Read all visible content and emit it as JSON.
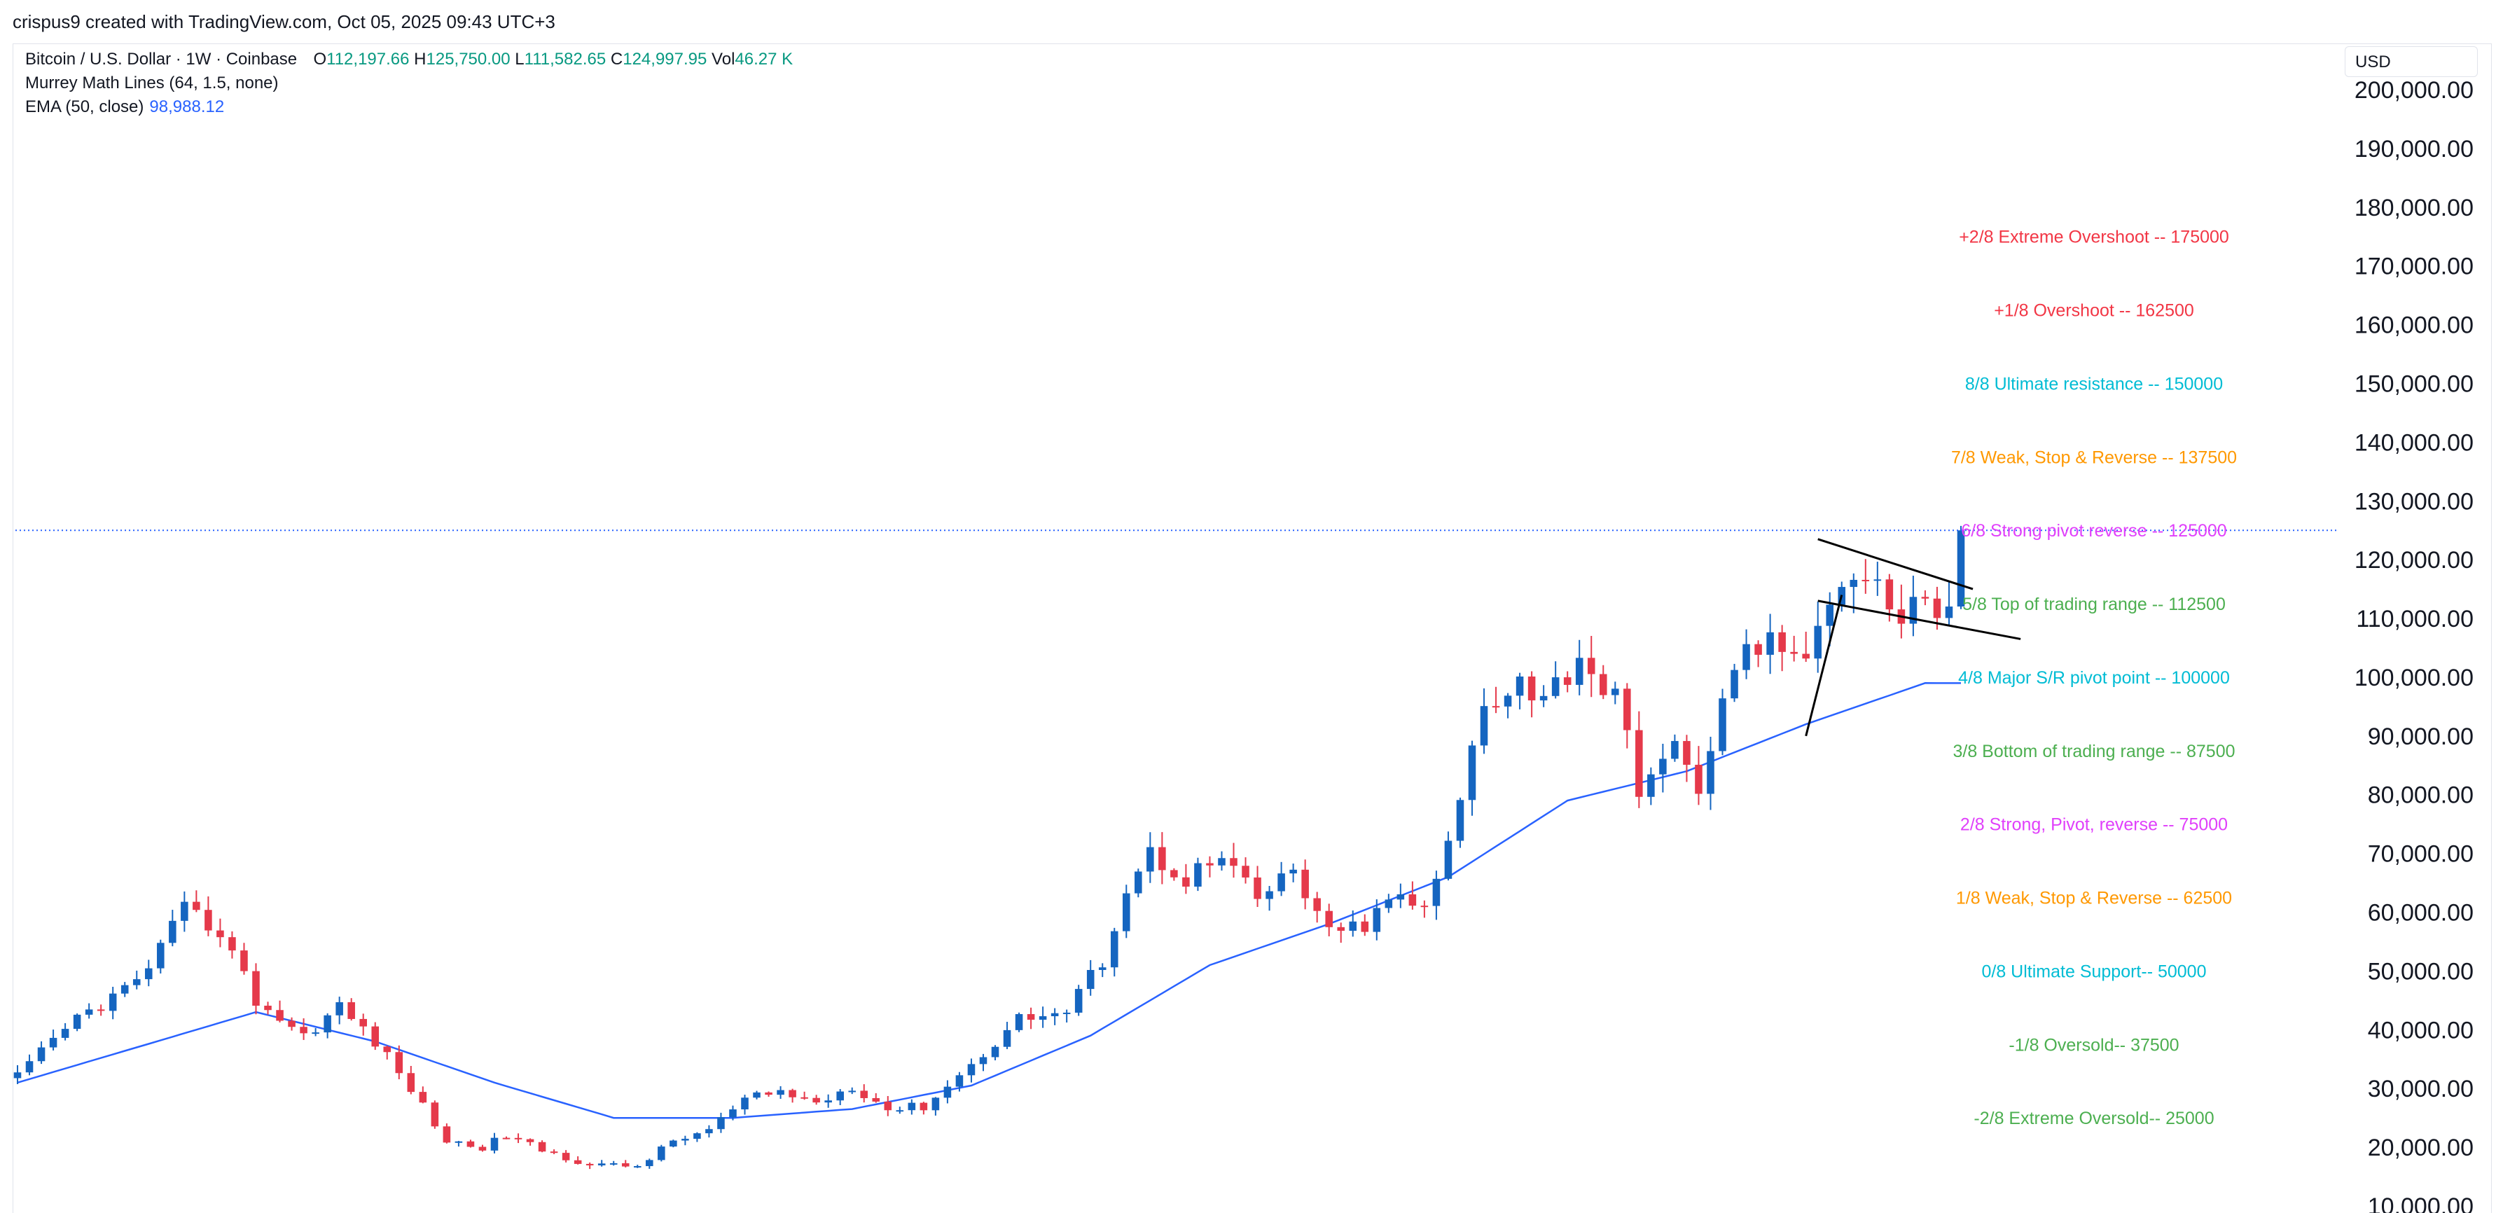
{
  "header": {
    "attribution": "crispus9 created with TradingView.com, Oct 05, 2025 09:43 UTC+3"
  },
  "legend": {
    "symbol": "Bitcoin / U.S. Dollar · 1W · Coinbase",
    "open_label": "O",
    "open": "112,197.66",
    "high_label": "H",
    "high": "125,750.00",
    "low_label": "L",
    "low": "111,582.65",
    "close_label": "C",
    "close": "124,997.95",
    "vol_label": "Vol",
    "vol": "46.27 K",
    "mml": "Murrey Math Lines (64, 1.5, none)",
    "ema_label": "EMA (50, close)",
    "ema_value": "98,988.12"
  },
  "currency": "USD",
  "colors": {
    "up": "#1565c0",
    "down": "#e5394a",
    "ema": "#2962ff",
    "last_price_line": "#2962ff",
    "pattern_lines": "#000000"
  },
  "chart_data": {
    "type": "candlestick",
    "title": "Bitcoin / U.S. Dollar · 1W · Coinbase",
    "interval": "1W",
    "ylim": [
      10000,
      200000
    ],
    "y_ticks": [
      {
        "value": 200000,
        "label": "200,000.00"
      },
      {
        "value": 190000,
        "label": "190,000.00"
      },
      {
        "value": 180000,
        "label": "180,000.00"
      },
      {
        "value": 170000,
        "label": "170,000.00"
      },
      {
        "value": 160000,
        "label": "160,000.00"
      },
      {
        "value": 150000,
        "label": "150,000.00"
      },
      {
        "value": 140000,
        "label": "140,000.00"
      },
      {
        "value": 130000,
        "label": "130,000.00"
      },
      {
        "value": 120000,
        "label": "120,000.00"
      },
      {
        "value": 110000,
        "label": "110,000.00"
      },
      {
        "value": 100000,
        "label": "100,000.00"
      },
      {
        "value": 90000,
        "label": "90,000.00"
      },
      {
        "value": 80000,
        "label": "80,000.00"
      },
      {
        "value": 70000,
        "label": "70,000.00"
      },
      {
        "value": 60000,
        "label": "60,000.00"
      },
      {
        "value": 50000,
        "label": "50,000.00"
      },
      {
        "value": 40000,
        "label": "40,000.00"
      },
      {
        "value": 30000,
        "label": "30,000.00"
      },
      {
        "value": 20000,
        "label": "20,000.00"
      },
      {
        "value": 10000,
        "label": "10,000.00"
      }
    ],
    "last_price": 124997.95,
    "ema_period": 50,
    "ema_latest": 98988.12,
    "mml_levels": [
      {
        "text": "+2/8 Extreme Overshoot --  175000",
        "value": 175000,
        "color": "#f23645"
      },
      {
        "text": "+1/8 Overshoot --  162500",
        "value": 162500,
        "color": "#f23645"
      },
      {
        "text": "8/8 Ultimate resistance --  150000",
        "value": 150000,
        "color": "#00bcd4"
      },
      {
        "text": "7/8 Weak, Stop & Reverse --  137500",
        "value": 137500,
        "color": "#ff9800"
      },
      {
        "text": "6/8 Strong pivot reverse --  125000",
        "value": 125000,
        "color": "#e040fb"
      },
      {
        "text": "5/8 Top of trading range --  112500",
        "value": 112500,
        "color": "#4caf50"
      },
      {
        "text": "4/8 Major S/R pivot point --  100000",
        "value": 100000,
        "color": "#00bcd4"
      },
      {
        "text": "3/8 Bottom of trading range --  87500",
        "value": 87500,
        "color": "#4caf50"
      },
      {
        "text": "2/8 Strong, Pivot, reverse --  75000",
        "value": 75000,
        "color": "#e040fb"
      },
      {
        "text": "1/8 Weak, Stop & Reverse --  62500",
        "value": 62500,
        "color": "#ff9800"
      },
      {
        "text": "0/8 Ultimate Support--  50000",
        "value": 50000,
        "color": "#00bcd4"
      },
      {
        "text": "-1/8 Oversold--  37500",
        "value": 37500,
        "color": "#4caf50"
      },
      {
        "text": "-2/8 Extreme Oversold--  25000",
        "value": 25000,
        "color": "#4caf50"
      }
    ],
    "close_anchors": [
      [
        0,
        32000
      ],
      [
        5,
        42000
      ],
      [
        10,
        48000
      ],
      [
        14,
        60000
      ],
      [
        17,
        57000
      ],
      [
        20,
        45000
      ],
      [
        24,
        39000
      ],
      [
        27,
        44000
      ],
      [
        30,
        38000
      ],
      [
        33,
        30000
      ],
      [
        36,
        21000
      ],
      [
        39,
        20000
      ],
      [
        41,
        22000
      ],
      [
        44,
        19500
      ],
      [
        48,
        17000
      ],
      [
        52,
        16800
      ],
      [
        55,
        21000
      ],
      [
        58,
        23000
      ],
      [
        61,
        28000
      ],
      [
        64,
        29500
      ],
      [
        67,
        27500
      ],
      [
        70,
        30500
      ],
      [
        73,
        26500
      ],
      [
        76,
        27000
      ],
      [
        80,
        34000
      ],
      [
        84,
        42000
      ],
      [
        88,
        43000
      ],
      [
        91,
        52000
      ],
      [
        93,
        64000
      ],
      [
        95,
        70000
      ],
      [
        98,
        66000
      ],
      [
        101,
        69000
      ],
      [
        104,
        62000
      ],
      [
        107,
        67000
      ],
      [
        110,
        56000
      ],
      [
        113,
        58000
      ],
      [
        116,
        63000
      ],
      [
        118,
        60000
      ],
      [
        120,
        71000
      ],
      [
        123,
        96000
      ],
      [
        126,
        100000
      ],
      [
        128,
        96000
      ],
      [
        131,
        104000
      ],
      [
        134,
        96000
      ],
      [
        136,
        82000
      ],
      [
        139,
        87000
      ],
      [
        141,
        82000
      ],
      [
        143,
        95000
      ],
      [
        145,
        105000
      ],
      [
        148,
        106000
      ],
      [
        150,
        101000
      ],
      [
        152,
        115000
      ],
      [
        154,
        119000
      ],
      [
        156,
        117000
      ],
      [
        158,
        109000
      ],
      [
        160,
        114000
      ],
      [
        162,
        110000
      ],
      [
        163,
        124998
      ]
    ],
    "ema_anchors": [
      [
        0,
        31000
      ],
      [
        10,
        37000
      ],
      [
        20,
        43000
      ],
      [
        30,
        38000
      ],
      [
        40,
        31000
      ],
      [
        50,
        25000
      ],
      [
        60,
        25000
      ],
      [
        70,
        26500
      ],
      [
        80,
        30500
      ],
      [
        90,
        39000
      ],
      [
        100,
        51000
      ],
      [
        110,
        58000
      ],
      [
        120,
        66000
      ],
      [
        130,
        79000
      ],
      [
        140,
        84000
      ],
      [
        150,
        92000
      ],
      [
        160,
        99000
      ],
      [
        163,
        98988.12
      ]
    ],
    "candle_count": 164
  }
}
